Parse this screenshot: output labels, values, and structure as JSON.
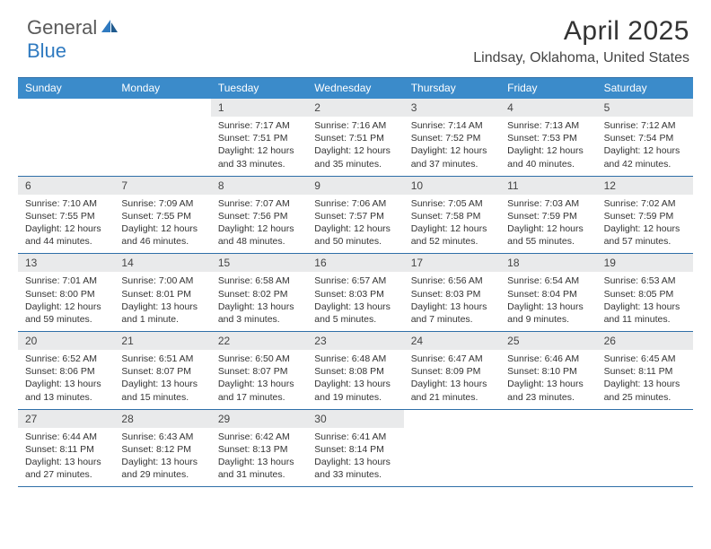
{
  "logo": {
    "text_general": "General",
    "text_blue": "Blue"
  },
  "title": "April 2025",
  "location": "Lindsay, Oklahoma, United States",
  "day_names": [
    "Sunday",
    "Monday",
    "Tuesday",
    "Wednesday",
    "Thursday",
    "Friday",
    "Saturday"
  ],
  "colors": {
    "header_bg": "#3b8bca",
    "header_text": "#ffffff",
    "rule": "#2f6fa8",
    "daynum_bg": "#e9eaeb",
    "logo_gray": "#5a5a5a",
    "logo_blue": "#2f7ac0"
  },
  "weeks": [
    [
      null,
      null,
      {
        "n": "1",
        "sunrise": "7:17 AM",
        "sunset": "7:51 PM",
        "daylight": "12 hours and 33 minutes."
      },
      {
        "n": "2",
        "sunrise": "7:16 AM",
        "sunset": "7:51 PM",
        "daylight": "12 hours and 35 minutes."
      },
      {
        "n": "3",
        "sunrise": "7:14 AM",
        "sunset": "7:52 PM",
        "daylight": "12 hours and 37 minutes."
      },
      {
        "n": "4",
        "sunrise": "7:13 AM",
        "sunset": "7:53 PM",
        "daylight": "12 hours and 40 minutes."
      },
      {
        "n": "5",
        "sunrise": "7:12 AM",
        "sunset": "7:54 PM",
        "daylight": "12 hours and 42 minutes."
      }
    ],
    [
      {
        "n": "6",
        "sunrise": "7:10 AM",
        "sunset": "7:55 PM",
        "daylight": "12 hours and 44 minutes."
      },
      {
        "n": "7",
        "sunrise": "7:09 AM",
        "sunset": "7:55 PM",
        "daylight": "12 hours and 46 minutes."
      },
      {
        "n": "8",
        "sunrise": "7:07 AM",
        "sunset": "7:56 PM",
        "daylight": "12 hours and 48 minutes."
      },
      {
        "n": "9",
        "sunrise": "7:06 AM",
        "sunset": "7:57 PM",
        "daylight": "12 hours and 50 minutes."
      },
      {
        "n": "10",
        "sunrise": "7:05 AM",
        "sunset": "7:58 PM",
        "daylight": "12 hours and 52 minutes."
      },
      {
        "n": "11",
        "sunrise": "7:03 AM",
        "sunset": "7:59 PM",
        "daylight": "12 hours and 55 minutes."
      },
      {
        "n": "12",
        "sunrise": "7:02 AM",
        "sunset": "7:59 PM",
        "daylight": "12 hours and 57 minutes."
      }
    ],
    [
      {
        "n": "13",
        "sunrise": "7:01 AM",
        "sunset": "8:00 PM",
        "daylight": "12 hours and 59 minutes."
      },
      {
        "n": "14",
        "sunrise": "7:00 AM",
        "sunset": "8:01 PM",
        "daylight": "13 hours and 1 minute."
      },
      {
        "n": "15",
        "sunrise": "6:58 AM",
        "sunset": "8:02 PM",
        "daylight": "13 hours and 3 minutes."
      },
      {
        "n": "16",
        "sunrise": "6:57 AM",
        "sunset": "8:03 PM",
        "daylight": "13 hours and 5 minutes."
      },
      {
        "n": "17",
        "sunrise": "6:56 AM",
        "sunset": "8:03 PM",
        "daylight": "13 hours and 7 minutes."
      },
      {
        "n": "18",
        "sunrise": "6:54 AM",
        "sunset": "8:04 PM",
        "daylight": "13 hours and 9 minutes."
      },
      {
        "n": "19",
        "sunrise": "6:53 AM",
        "sunset": "8:05 PM",
        "daylight": "13 hours and 11 minutes."
      }
    ],
    [
      {
        "n": "20",
        "sunrise": "6:52 AM",
        "sunset": "8:06 PM",
        "daylight": "13 hours and 13 minutes."
      },
      {
        "n": "21",
        "sunrise": "6:51 AM",
        "sunset": "8:07 PM",
        "daylight": "13 hours and 15 minutes."
      },
      {
        "n": "22",
        "sunrise": "6:50 AM",
        "sunset": "8:07 PM",
        "daylight": "13 hours and 17 minutes."
      },
      {
        "n": "23",
        "sunrise": "6:48 AM",
        "sunset": "8:08 PM",
        "daylight": "13 hours and 19 minutes."
      },
      {
        "n": "24",
        "sunrise": "6:47 AM",
        "sunset": "8:09 PM",
        "daylight": "13 hours and 21 minutes."
      },
      {
        "n": "25",
        "sunrise": "6:46 AM",
        "sunset": "8:10 PM",
        "daylight": "13 hours and 23 minutes."
      },
      {
        "n": "26",
        "sunrise": "6:45 AM",
        "sunset": "8:11 PM",
        "daylight": "13 hours and 25 minutes."
      }
    ],
    [
      {
        "n": "27",
        "sunrise": "6:44 AM",
        "sunset": "8:11 PM",
        "daylight": "13 hours and 27 minutes."
      },
      {
        "n": "28",
        "sunrise": "6:43 AM",
        "sunset": "8:12 PM",
        "daylight": "13 hours and 29 minutes."
      },
      {
        "n": "29",
        "sunrise": "6:42 AM",
        "sunset": "8:13 PM",
        "daylight": "13 hours and 31 minutes."
      },
      {
        "n": "30",
        "sunrise": "6:41 AM",
        "sunset": "8:14 PM",
        "daylight": "13 hours and 33 minutes."
      },
      null,
      null,
      null
    ]
  ],
  "labels": {
    "sunrise": "Sunrise: ",
    "sunset": "Sunset: ",
    "daylight": "Daylight: "
  }
}
